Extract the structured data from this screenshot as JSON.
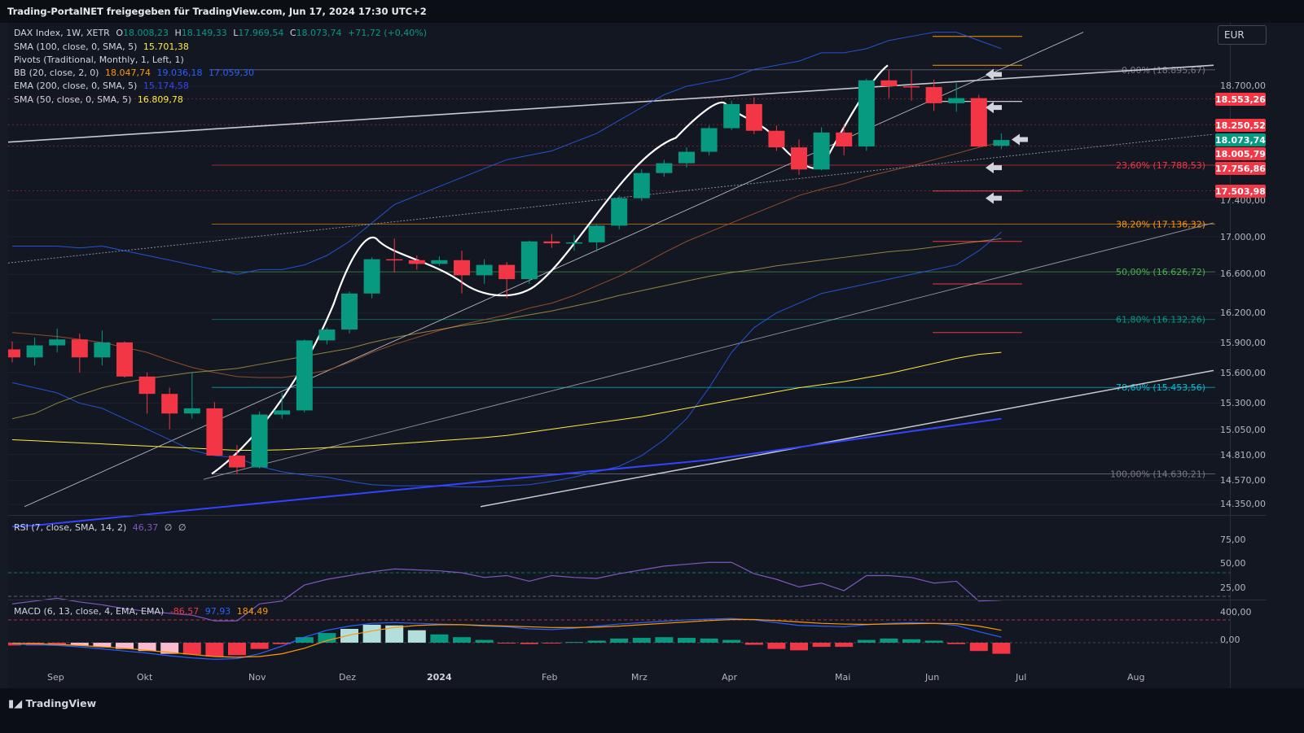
{
  "header": {
    "title": "Trading-PortalNET freigegeben für TradingView.com, Jun 17, 2024 17:30 UTC+2"
  },
  "footer": {
    "brand": "TradingView"
  },
  "currency": "EUR",
  "legend": {
    "main": {
      "name": "DAX Index, 1W, XETR",
      "o_label": "O",
      "o": "18.008,23",
      "h_label": "H",
      "h": "18.149,33",
      "l_label": "L",
      "l": "17.969,54",
      "c_label": "C",
      "c": "18.073,74",
      "change": "+71,72 (+0,40%)"
    },
    "sma100": {
      "name": "SMA (100, close, 0, SMA, 5)",
      "value": "15.701,38"
    },
    "pivots": {
      "name": "Pivots (Traditional, Monthly, 1, Left, 1)"
    },
    "bb": {
      "name": "BB (20, close, 2, 0)",
      "v1": "18.047,74",
      "v2": "19.036,18",
      "v3": "17.059,30"
    },
    "ema200": {
      "name": "EMA (200, close, 0, SMA, 5)",
      "value": "15.174,58"
    },
    "sma50": {
      "name": "SMA (50, close, 0, SMA, 5)",
      "value": "16.809,78"
    },
    "rsi": {
      "name": "RSI (7, close, SMA, 14, 2)",
      "value": "46,37",
      "n1": "∅",
      "n2": "∅"
    },
    "macd": {
      "name": "MACD (6, 13, close, 4, EMA, EMA)",
      "v1": "-86,57",
      "v2": "97,93",
      "v3": "184,49"
    }
  },
  "price_labels": [
    {
      "text": "18.553,26",
      "color": "#f23645"
    },
    {
      "text": "18.250,52",
      "color": "#f23645"
    },
    {
      "text": "18.073,74",
      "color": "#089981"
    },
    {
      "text": "18.005,79",
      "color": "#f23645"
    },
    {
      "text": "17.756,86",
      "color": "#f23645"
    },
    {
      "text": "17.503,98",
      "color": "#f23645"
    }
  ],
  "y_ticks": [
    "18.700,00",
    "17.400,00",
    "17.000,00",
    "16.600,00",
    "16.200,00",
    "15.900,00",
    "15.600,00",
    "15.300,00",
    "15.050,00",
    "14.810,00",
    "14.570,00",
    "14.350,00"
  ],
  "rsi_ticks": [
    "75,00",
    "50,00",
    "25,00"
  ],
  "macd_ticks": [
    "400,00",
    "0,00"
  ],
  "x_ticks": [
    "Sep",
    "Okt",
    "Nov",
    "Dez",
    "2024",
    "Feb",
    "Mrz",
    "Apr",
    "Mai",
    "Jun",
    "Jul",
    "Aug"
  ],
  "fib_labels": [
    {
      "text": "0,00% (18.895,67)",
      "color": "#787b86"
    },
    {
      "text": "23,60% (17.788,53)",
      "color": "#f23645"
    },
    {
      "text": "38,20% (17.136,32)",
      "color": "#ff9800"
    },
    {
      "text": "50,00% (16.626,72)",
      "color": "#4caf50"
    },
    {
      "text": "61,80% (16.132,26)",
      "color": "#089981"
    },
    {
      "text": "78,60% (15.453,56)",
      "color": "#00bcd4"
    },
    {
      "text": "100,00% (14.630,21)",
      "color": "#787b86"
    }
  ],
  "colors": {
    "up": "#089981",
    "down": "#f23645",
    "bb": "#2962ff",
    "sma50": "#c8b44a",
    "sma100": "#ffeb3b",
    "ema200": "#3344ff",
    "rsi": "#7e57c2",
    "macd": "#2962ff",
    "signal": "#ff9800"
  },
  "chart_data": {
    "type": "candlestick",
    "title": "DAX Index, 1W, XETR",
    "x_unit": "week starting",
    "candles": [
      {
        "x": "2023-08-14",
        "o": 15830,
        "h": 15910,
        "l": 15700,
        "c": 15750
      },
      {
        "x": "2023-08-21",
        "o": 15750,
        "h": 15950,
        "l": 15670,
        "c": 15870
      },
      {
        "x": "2023-08-28",
        "o": 15870,
        "h": 16040,
        "l": 15800,
        "c": 15930
      },
      {
        "x": "2023-09-04",
        "o": 15930,
        "h": 15990,
        "l": 15600,
        "c": 15750
      },
      {
        "x": "2023-09-11",
        "o": 15750,
        "h": 16020,
        "l": 15670,
        "c": 15900
      },
      {
        "x": "2023-09-18",
        "o": 15900,
        "h": 15910,
        "l": 15550,
        "c": 15560
      },
      {
        "x": "2023-09-25",
        "o": 15560,
        "h": 15600,
        "l": 15200,
        "c": 15390
      },
      {
        "x": "2023-10-02",
        "o": 15390,
        "h": 15450,
        "l": 15050,
        "c": 15200
      },
      {
        "x": "2023-10-09",
        "o": 15200,
        "h": 15600,
        "l": 15150,
        "c": 15250
      },
      {
        "x": "2023-10-16",
        "o": 15250,
        "h": 15310,
        "l": 14810,
        "c": 14800
      },
      {
        "x": "2023-10-23",
        "o": 14800,
        "h": 14900,
        "l": 14630,
        "c": 14690
      },
      {
        "x": "2023-10-30",
        "o": 14690,
        "h": 15220,
        "l": 14680,
        "c": 15190
      },
      {
        "x": "2023-11-06",
        "o": 15190,
        "h": 15400,
        "l": 15150,
        "c": 15230
      },
      {
        "x": "2023-11-13",
        "o": 15230,
        "h": 15930,
        "l": 15210,
        "c": 15920
      },
      {
        "x": "2023-11-20",
        "o": 15920,
        "h": 16050,
        "l": 15880,
        "c": 16030
      },
      {
        "x": "2023-11-27",
        "o": 16030,
        "h": 16420,
        "l": 15990,
        "c": 16400
      },
      {
        "x": "2023-12-04",
        "o": 16400,
        "h": 16780,
        "l": 16350,
        "c": 16760
      },
      {
        "x": "2023-12-11",
        "o": 16760,
        "h": 16980,
        "l": 16620,
        "c": 16750
      },
      {
        "x": "2023-12-18",
        "o": 16750,
        "h": 16800,
        "l": 16650,
        "c": 16710
      },
      {
        "x": "2023-12-25",
        "o": 16710,
        "h": 16790,
        "l": 16690,
        "c": 16750
      },
      {
        "x": "2024-01-01",
        "o": 16750,
        "h": 16850,
        "l": 16400,
        "c": 16590
      },
      {
        "x": "2024-01-08",
        "o": 16590,
        "h": 16760,
        "l": 16500,
        "c": 16700
      },
      {
        "x": "2024-01-15",
        "o": 16700,
        "h": 16730,
        "l": 16350,
        "c": 16550
      },
      {
        "x": "2024-01-22",
        "o": 16550,
        "h": 16960,
        "l": 16500,
        "c": 16950
      },
      {
        "x": "2024-01-29",
        "o": 16950,
        "h": 17030,
        "l": 16880,
        "c": 16930
      },
      {
        "x": "2024-02-05",
        "o": 16930,
        "h": 17020,
        "l": 16850,
        "c": 16940
      },
      {
        "x": "2024-02-12",
        "o": 16940,
        "h": 17130,
        "l": 16840,
        "c": 17120
      },
      {
        "x": "2024-02-19",
        "o": 17120,
        "h": 17450,
        "l": 17080,
        "c": 17420
      },
      {
        "x": "2024-02-26",
        "o": 17420,
        "h": 17740,
        "l": 17390,
        "c": 17700
      },
      {
        "x": "2024-03-04",
        "o": 17700,
        "h": 17850,
        "l": 17660,
        "c": 17810
      },
      {
        "x": "2024-03-11",
        "o": 17810,
        "h": 17990,
        "l": 17760,
        "c": 17940
      },
      {
        "x": "2024-03-18",
        "o": 17940,
        "h": 18240,
        "l": 17900,
        "c": 18210
      },
      {
        "x": "2024-03-25",
        "o": 18210,
        "h": 18530,
        "l": 18190,
        "c": 18490
      },
      {
        "x": "2024-04-01",
        "o": 18490,
        "h": 18570,
        "l": 18140,
        "c": 18180
      },
      {
        "x": "2024-04-08",
        "o": 18180,
        "h": 18240,
        "l": 17950,
        "c": 17990
      },
      {
        "x": "2024-04-15",
        "o": 17990,
        "h": 18080,
        "l": 17680,
        "c": 17740
      },
      {
        "x": "2024-04-22",
        "o": 17740,
        "h": 18220,
        "l": 17730,
        "c": 18160
      },
      {
        "x": "2024-04-29",
        "o": 18160,
        "h": 18250,
        "l": 17900,
        "c": 18000
      },
      {
        "x": "2024-05-06",
        "o": 18000,
        "h": 18790,
        "l": 17950,
        "c": 18770
      },
      {
        "x": "2024-05-13",
        "o": 18770,
        "h": 18890,
        "l": 18560,
        "c": 18700
      },
      {
        "x": "2024-05-20",
        "o": 18700,
        "h": 18890,
        "l": 18530,
        "c": 18690
      },
      {
        "x": "2024-05-27",
        "o": 18690,
        "h": 18780,
        "l": 18410,
        "c": 18500
      },
      {
        "x": "2024-06-03",
        "o": 18500,
        "h": 18740,
        "l": 18400,
        "c": 18560
      },
      {
        "x": "2024-06-10",
        "o": 18560,
        "h": 18600,
        "l": 17990,
        "c": 18000
      },
      {
        "x": "2024-06-17",
        "o": 18008.23,
        "h": 18149.33,
        "l": 17969.54,
        "c": 18073.74
      }
    ],
    "indicator_values": {
      "SMA100": 15701.38,
      "BB_basis": 18047.74,
      "BB_upper": 19036.18,
      "BB_lower": 17059.3,
      "EMA200": 15174.58,
      "SMA50": 16809.78,
      "RSI": 46.37,
      "MACD": -86.57,
      "MACD_signal": 97.93,
      "MACD_hist": 184.49
    },
    "fibonacci": [
      {
        "level": "0,00%",
        "price": 18895.67
      },
      {
        "level": "23,60%",
        "price": 17788.53
      },
      {
        "level": "38,20%",
        "price": 17136.32
      },
      {
        "level": "50,00%",
        "price": 16626.72
      },
      {
        "level": "61,80%",
        "price": 16132.26
      },
      {
        "level": "78,60%",
        "price": 15453.56
      },
      {
        "level": "100,00%",
        "price": 14630.21
      }
    ],
    "rsi_levels": [
      75,
      50,
      25
    ],
    "ylim": [
      14250,
      19350
    ],
    "y_scale": "log"
  }
}
